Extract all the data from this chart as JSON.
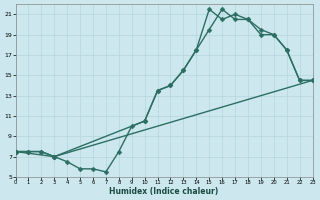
{
  "xlabel": "Humidex (Indice chaleur)",
  "xlim": [
    0,
    23
  ],
  "ylim": [
    5,
    22
  ],
  "xticks": [
    0,
    1,
    2,
    3,
    4,
    5,
    6,
    7,
    8,
    9,
    10,
    11,
    12,
    13,
    14,
    15,
    16,
    17,
    18,
    19,
    20,
    21,
    22,
    23
  ],
  "yticks": [
    5,
    7,
    9,
    11,
    13,
    15,
    17,
    19,
    21
  ],
  "bg_color": "#cce8ee",
  "grid_color": "#b8d8e0",
  "line_color": "#2d6e62",
  "line1_x": [
    0,
    1,
    2,
    3,
    4,
    5,
    6,
    7,
    8,
    9,
    10,
    11,
    12,
    13,
    14,
    15,
    16,
    17,
    18,
    19,
    20,
    21,
    22,
    23
  ],
  "line1_y": [
    7.5,
    7.5,
    7.5,
    7.0,
    6.5,
    5.8,
    5.8,
    5.5,
    7.5,
    10.0,
    10.5,
    13.5,
    14.0,
    15.5,
    17.5,
    21.5,
    20.5,
    21.0,
    20.5,
    19.0,
    19.0,
    17.5,
    14.5,
    14.5
  ],
  "line2_x": [
    0,
    1,
    2,
    3,
    23
  ],
  "line2_y": [
    7.5,
    7.5,
    7.5,
    7.0,
    14.5
  ],
  "line3_x": [
    0,
    3,
    10,
    11,
    12,
    13,
    14,
    15,
    16,
    17,
    18,
    19,
    20,
    21,
    22,
    23
  ],
  "line3_y": [
    7.5,
    7.0,
    10.5,
    13.5,
    14.0,
    15.5,
    17.5,
    19.5,
    21.5,
    20.5,
    20.5,
    19.5,
    19.0,
    17.5,
    14.5,
    14.5
  ],
  "marker_size": 2.5,
  "line_width": 1.0
}
